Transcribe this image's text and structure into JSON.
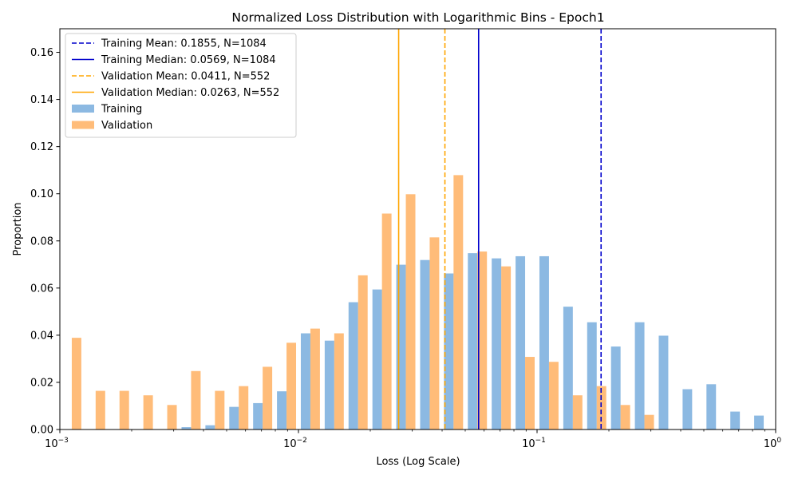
{
  "chart_data": {
    "type": "bar",
    "title": "Normalized Loss Distribution with Logarithmic Bins - Epoch1",
    "xlabel": "Loss (Log Scale)",
    "ylabel": "Proportion",
    "xscale": "log",
    "xlim": [
      0.001,
      1
    ],
    "ylim": [
      0,
      0.17
    ],
    "grid": false,
    "legend_position": "top-left",
    "x_ticks": [
      {
        "value": 0.001,
        "base": "10",
        "exp": "−3"
      },
      {
        "value": 0.01,
        "base": "10",
        "exp": "−2"
      },
      {
        "value": 0.1,
        "base": "10",
        "exp": "−1"
      },
      {
        "value": 1,
        "base": "10",
        "exp": "0"
      }
    ],
    "y_ticks": [
      "0.00",
      "0.02",
      "0.04",
      "0.06",
      "0.08",
      "0.10",
      "0.12",
      "0.14",
      "0.16"
    ],
    "bins": 30,
    "series": [
      {
        "name": "Training",
        "color": "#5b9bd5",
        "opacity": 0.7,
        "values": [
          0,
          0,
          0,
          0,
          0,
          0.001,
          0.0018,
          0.0096,
          0.0112,
          0.0162,
          0.0408,
          0.0377,
          0.054,
          0.0594,
          0.0699,
          0.0719,
          0.0662,
          0.0748,
          0.0726,
          0.0735,
          0.0735,
          0.0521,
          0.0455,
          0.0352,
          0.0455,
          0.0398,
          0.0171,
          0.0192,
          0.0076,
          0.0059
        ]
      },
      {
        "name": "Validation",
        "color": "#ff9f40",
        "opacity": 0.7,
        "values": [
          0.0389,
          0.0164,
          0.0164,
          0.0145,
          0.0104,
          0.0248,
          0.0164,
          0.0184,
          0.0266,
          0.0368,
          0.0428,
          0.0408,
          0.0654,
          0.0916,
          0.0998,
          0.0815,
          0.1079,
          0.0755,
          0.0692,
          0.0308,
          0.0287,
          0.0145,
          0.0184,
          0.0104,
          0.0062,
          0,
          0,
          0,
          0,
          0
        ]
      }
    ],
    "reference_lines": [
      {
        "label": "Training Mean: 0.1855, N=1084",
        "value": 0.1855,
        "color": "#0000cc",
        "style": "dashed"
      },
      {
        "label": "Training Median: 0.0569, N=1084",
        "value": 0.0569,
        "color": "#0000cc",
        "style": "solid"
      },
      {
        "label": "Validation Mean: 0.0411, N=552",
        "value": 0.0411,
        "color": "#ffa500",
        "style": "dashed"
      },
      {
        "label": "Validation Median: 0.0263, N=552",
        "value": 0.0263,
        "color": "#ffa500",
        "style": "solid"
      }
    ]
  }
}
